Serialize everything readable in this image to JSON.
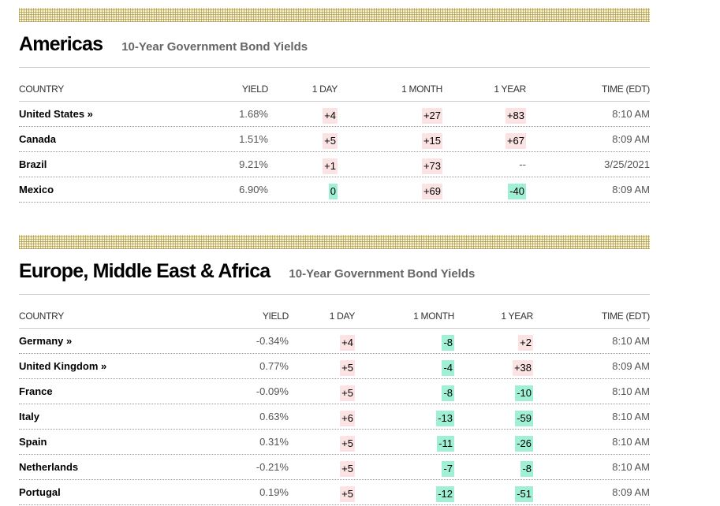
{
  "sections": [
    {
      "title": "Americas",
      "subtitle": "10-Year Government Bond Yields",
      "headers": [
        "COUNTRY",
        "YIELD",
        "1 DAY",
        "1 MONTH",
        "1 YEAR",
        "TIME (EDT)"
      ],
      "rows": [
        {
          "country": "United States »",
          "yield": "1.68%",
          "day": "+4",
          "month": "+27",
          "year": "+83",
          "time": "8:10 AM"
        },
        {
          "country": "Canada",
          "yield": "1.51%",
          "day": "+5",
          "month": "+15",
          "year": "+67",
          "time": "8:09 AM"
        },
        {
          "country": "Brazil",
          "yield": "9.21%",
          "day": "+1",
          "month": "+73",
          "year": "--",
          "time": "3/25/2021"
        },
        {
          "country": "Mexico",
          "yield": "6.90%",
          "day": "0",
          "month": "+69",
          "year": "-40",
          "time": "8:09 AM"
        }
      ]
    },
    {
      "title": "Europe, Middle East & Africa",
      "subtitle": "10-Year Government Bond Yields",
      "headers": [
        "COUNTRY",
        "YIELD",
        "1 DAY",
        "1 MONTH",
        "1 YEAR",
        "TIME (EDT)"
      ],
      "rows": [
        {
          "country": "Germany »",
          "yield": "-0.34%",
          "day": "+4",
          "month": "-8",
          "year": "+2",
          "time": "8:10 AM"
        },
        {
          "country": "United Kingdom »",
          "yield": "0.77%",
          "day": "+5",
          "month": "-4",
          "year": "+38",
          "time": "8:09 AM"
        },
        {
          "country": "France",
          "yield": "-0.09%",
          "day": "+5",
          "month": "-8",
          "year": "-10",
          "time": "8:10 AM"
        },
        {
          "country": "Italy",
          "yield": "0.63%",
          "day": "+6",
          "month": "-13",
          "year": "-59",
          "time": "8:10 AM"
        },
        {
          "country": "Spain",
          "yield": "0.31%",
          "day": "+5",
          "month": "-11",
          "year": "-26",
          "time": "8:10 AM"
        },
        {
          "country": "Netherlands",
          "yield": "-0.21%",
          "day": "+5",
          "month": "-7",
          "year": "-8",
          "time": "8:10 AM"
        },
        {
          "country": "Portugal",
          "yield": "0.19%",
          "day": "+5",
          "month": "-12",
          "year": "-51",
          "time": "8:09 AM"
        }
      ]
    }
  ],
  "colors": {
    "positive_bg": "#fbe3e3",
    "negative_bg": "#9ff0d4"
  }
}
